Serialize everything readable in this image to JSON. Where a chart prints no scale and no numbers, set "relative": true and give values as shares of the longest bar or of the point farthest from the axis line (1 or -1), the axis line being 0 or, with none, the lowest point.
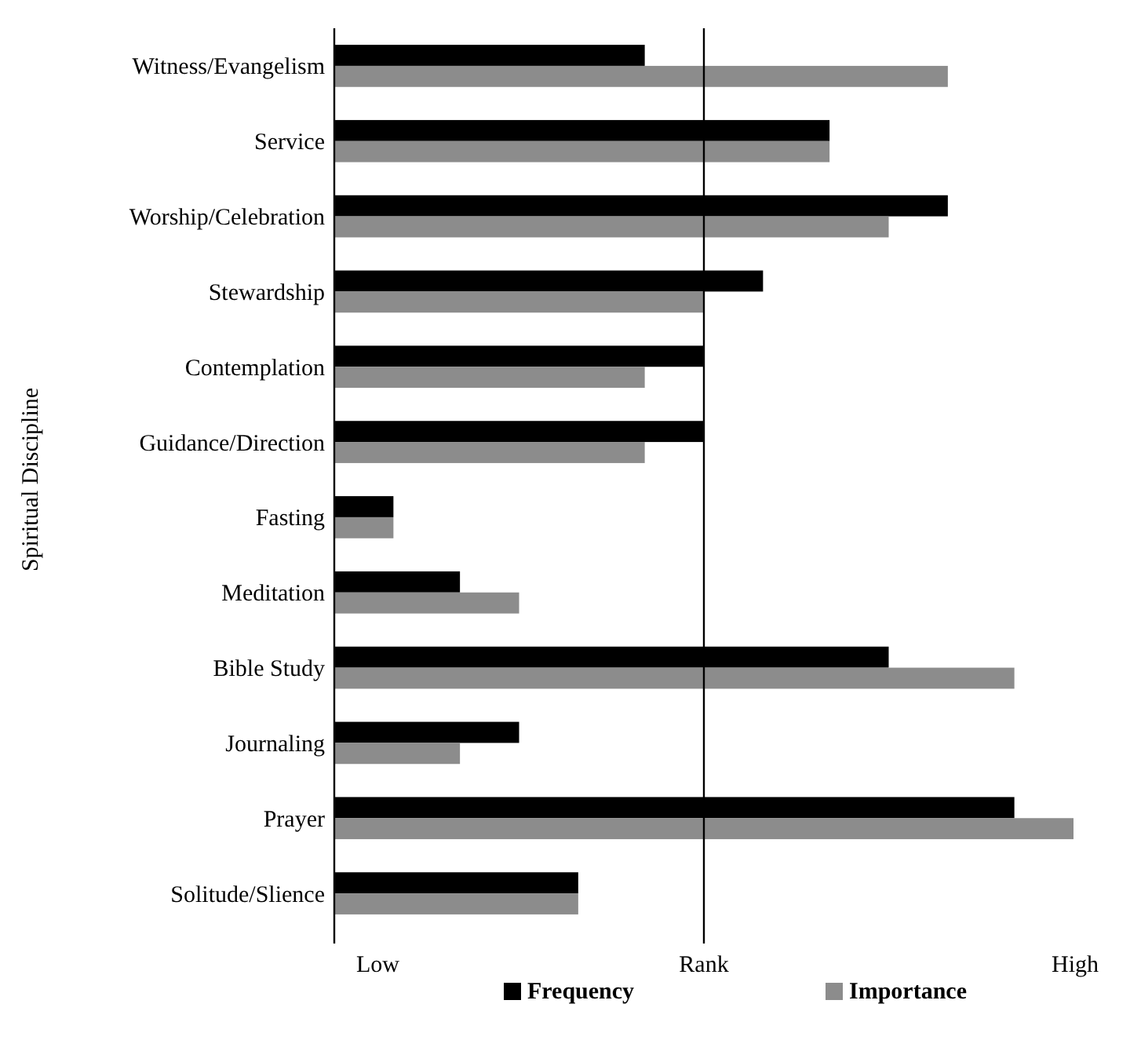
{
  "chart_data": {
    "type": "bar",
    "orientation": "horizontal",
    "relative": true,
    "ylabel": "Spiritual Discipline",
    "categories": [
      "Witness/Evangelism",
      "Service",
      "Worship/Celebration",
      "Stewardship",
      "Contemplation",
      "Guidance/Direction",
      "Fasting",
      "Meditation",
      "Bible Study",
      "Journaling",
      "Prayer",
      "Solitude/Slience"
    ],
    "series": [
      {
        "name": "Frequency",
        "color": "#000000",
        "values": [
          0.42,
          0.67,
          0.83,
          0.58,
          0.5,
          0.5,
          0.08,
          0.17,
          0.75,
          0.25,
          0.92,
          0.33
        ]
      },
      {
        "name": "Importance",
        "color": "#8c8c8c",
        "values": [
          0.83,
          0.67,
          0.75,
          0.5,
          0.42,
          0.42,
          0.08,
          0.25,
          0.92,
          0.17,
          1,
          0.33
        ]
      }
    ],
    "ref_lines": [
      {
        "axis": "x",
        "value": 0.5,
        "label": "Rank",
        "color": "#000000"
      }
    ],
    "annotations": [
      "Low",
      "High"
    ],
    "legend": "bottom"
  }
}
